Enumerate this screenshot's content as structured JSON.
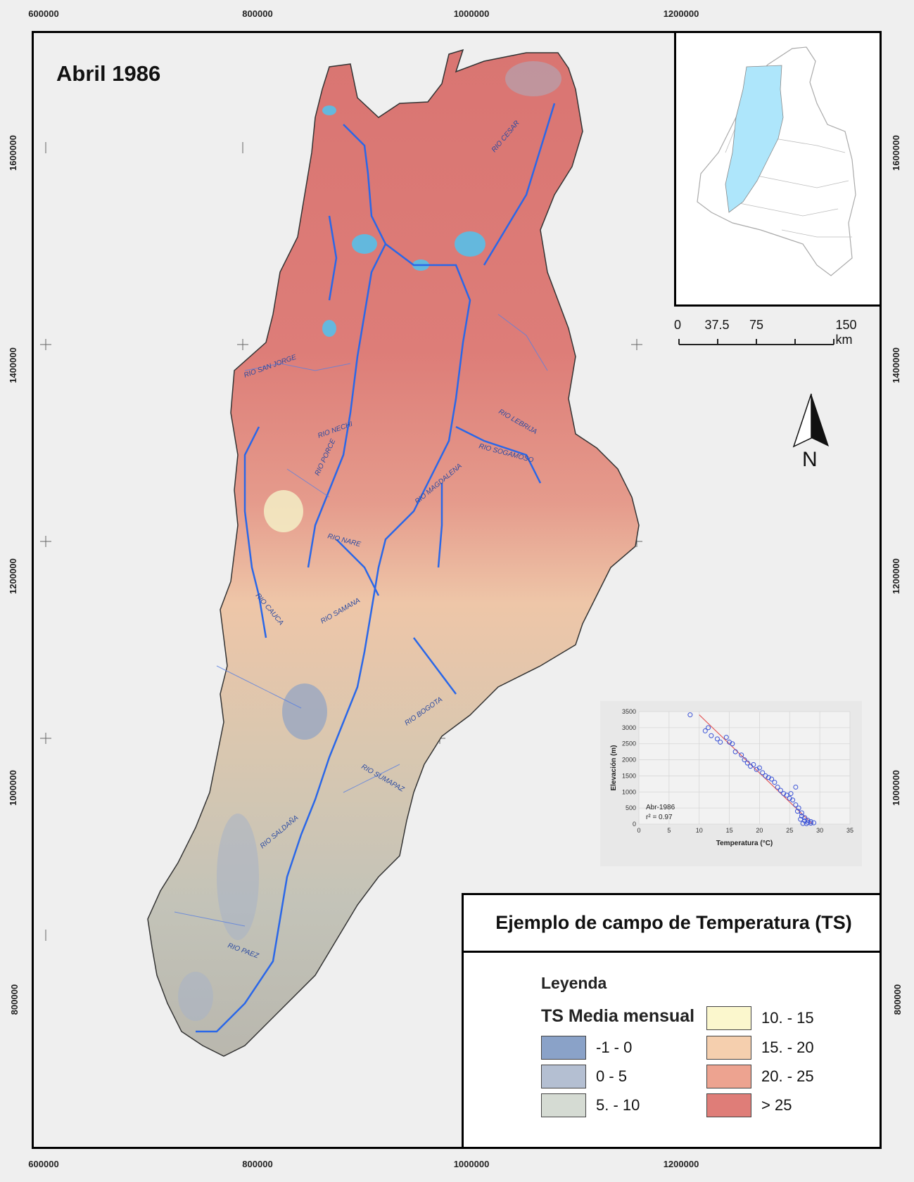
{
  "map_title": "Abril 1986",
  "coords": {
    "x_ticks": [
      "600000",
      "800000",
      "1000000",
      "1200000"
    ],
    "y_ticks": [
      "1600000",
      "1400000",
      "1200000",
      "1000000",
      "800000"
    ]
  },
  "scale": {
    "labels": [
      "0",
      "37.5",
      "75",
      "150 km"
    ]
  },
  "north_label": "N",
  "rivers": [
    "RIO CESAR",
    "RIO SAN JORGE",
    "RIO NECHI",
    "RIO PORCE",
    "RIO LEBRIJA",
    "RIO SOGAMOSO",
    "RIO MAGDALENA",
    "RIO NARE",
    "RIO CAUCA",
    "RIO SAMANA",
    "RIO BOGOTA",
    "RIO SUMAPAZ",
    "RIO SALDAÑA",
    "RIO PAEZ"
  ],
  "legend": {
    "title": "Ejemplo de campo de Temperatura (TS)",
    "heading": "Leyenda",
    "subheading": "TS Media mensual",
    "classes": [
      {
        "label": "-1 - 0",
        "color": "#8aa2c8"
      },
      {
        "label": "0 - 5",
        "color": "#b4bfd2"
      },
      {
        "label": "5. - 10",
        "color": "#d5dbd3"
      },
      {
        "label": "10. - 15",
        "color": "#fbf7cd"
      },
      {
        "label": "15. - 20",
        "color": "#f5cfae"
      },
      {
        "label": "20. - 25",
        "color": "#eda390"
      },
      {
        "label": "> 25",
        "color": "#df7d78"
      }
    ]
  },
  "chart_data": {
    "type": "scatter",
    "xlabel": "Temperatura (°C)",
    "ylabel": "Elevación (m)",
    "xlim": [
      0,
      35
    ],
    "ylim": [
      0,
      3500
    ],
    "x_ticks": [
      "0",
      "5",
      "10",
      "15",
      "20",
      "25",
      "30",
      "35"
    ],
    "y_ticks": [
      "0",
      "500",
      "1000",
      "1500",
      "2000",
      "2500",
      "3000",
      "3500"
    ],
    "annotation": [
      "Abr-1986",
      "r² = 0.97"
    ],
    "points": [
      [
        8.5,
        3400
      ],
      [
        11,
        2900
      ],
      [
        11.5,
        3000
      ],
      [
        12,
        2750
      ],
      [
        13,
        2650
      ],
      [
        13.5,
        2550
      ],
      [
        14.5,
        2700
      ],
      [
        15,
        2550
      ],
      [
        15.5,
        2500
      ],
      [
        16,
        2250
      ],
      [
        17,
        2150
      ],
      [
        17.5,
        2000
      ],
      [
        18,
        1900
      ],
      [
        18.5,
        1800
      ],
      [
        19,
        1850
      ],
      [
        19.5,
        1700
      ],
      [
        20,
        1750
      ],
      [
        20.5,
        1600
      ],
      [
        21,
        1500
      ],
      [
        21.5,
        1450
      ],
      [
        22,
        1400
      ],
      [
        22.5,
        1300
      ],
      [
        23,
        1150
      ],
      [
        23.5,
        1050
      ],
      [
        24,
        950
      ],
      [
        24.5,
        900
      ],
      [
        25,
        800
      ],
      [
        25.5,
        750
      ],
      [
        26,
        600
      ],
      [
        26,
        1150
      ],
      [
        26.5,
        500
      ],
      [
        27,
        350
      ],
      [
        27,
        250
      ],
      [
        27.5,
        200
      ],
      [
        27.5,
        100
      ],
      [
        28,
        120
      ],
      [
        28,
        60
      ],
      [
        28.5,
        80
      ],
      [
        28.5,
        30
      ],
      [
        29,
        40
      ],
      [
        27.2,
        20
      ],
      [
        27.8,
        15
      ],
      [
        26.8,
        150
      ],
      [
        26.3,
        400
      ],
      [
        25.2,
        950
      ]
    ],
    "fit": [
      [
        10,
        3400
      ],
      [
        28.8,
        0
      ]
    ],
    "colors": {
      "points": "#3a52d6",
      "fit": "#e35b5b"
    }
  }
}
